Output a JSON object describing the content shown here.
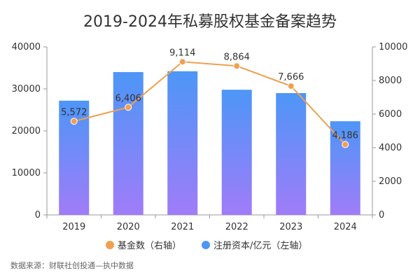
{
  "chart_data": {
    "type": "bar",
    "title": "2019-2024年私募股权基金备案趋势",
    "categories": [
      "2019",
      "2020",
      "2021",
      "2022",
      "2023",
      "2024"
    ],
    "series": [
      {
        "name": "注册资本/亿元（左轴）",
        "chart": "bar",
        "axis": "left",
        "values": [
          27200,
          34000,
          34200,
          29800,
          29000,
          22300
        ],
        "labels": [
          "",
          "",
          "",
          "",
          "",
          ""
        ]
      },
      {
        "name": "基金数（右轴）",
        "chart": "line",
        "axis": "right",
        "values": [
          5572,
          6406,
          9114,
          8864,
          7666,
          4186
        ],
        "labels": [
          "5,572",
          "6,406",
          "9,114",
          "8,864",
          "7,666",
          "4,186"
        ]
      }
    ],
    "ylim_left": [
      0,
      40000
    ],
    "ylim_right": [
      0,
      10000
    ],
    "yticks_left": [
      "0",
      "10000",
      "20000",
      "30000",
      "40000"
    ],
    "yticks_right": [
      "0",
      "2000",
      "4000",
      "6000",
      "8000",
      "10000"
    ],
    "legend_position": "bottom-center",
    "grid": false
  },
  "source": "数据来源：财联社创投通—执中数据",
  "colors": {
    "bar_top": "#4d96f7",
    "bar_bottom": "#a07cf8",
    "line": "#f0a050",
    "axis": "#999999",
    "text": "#333333"
  }
}
